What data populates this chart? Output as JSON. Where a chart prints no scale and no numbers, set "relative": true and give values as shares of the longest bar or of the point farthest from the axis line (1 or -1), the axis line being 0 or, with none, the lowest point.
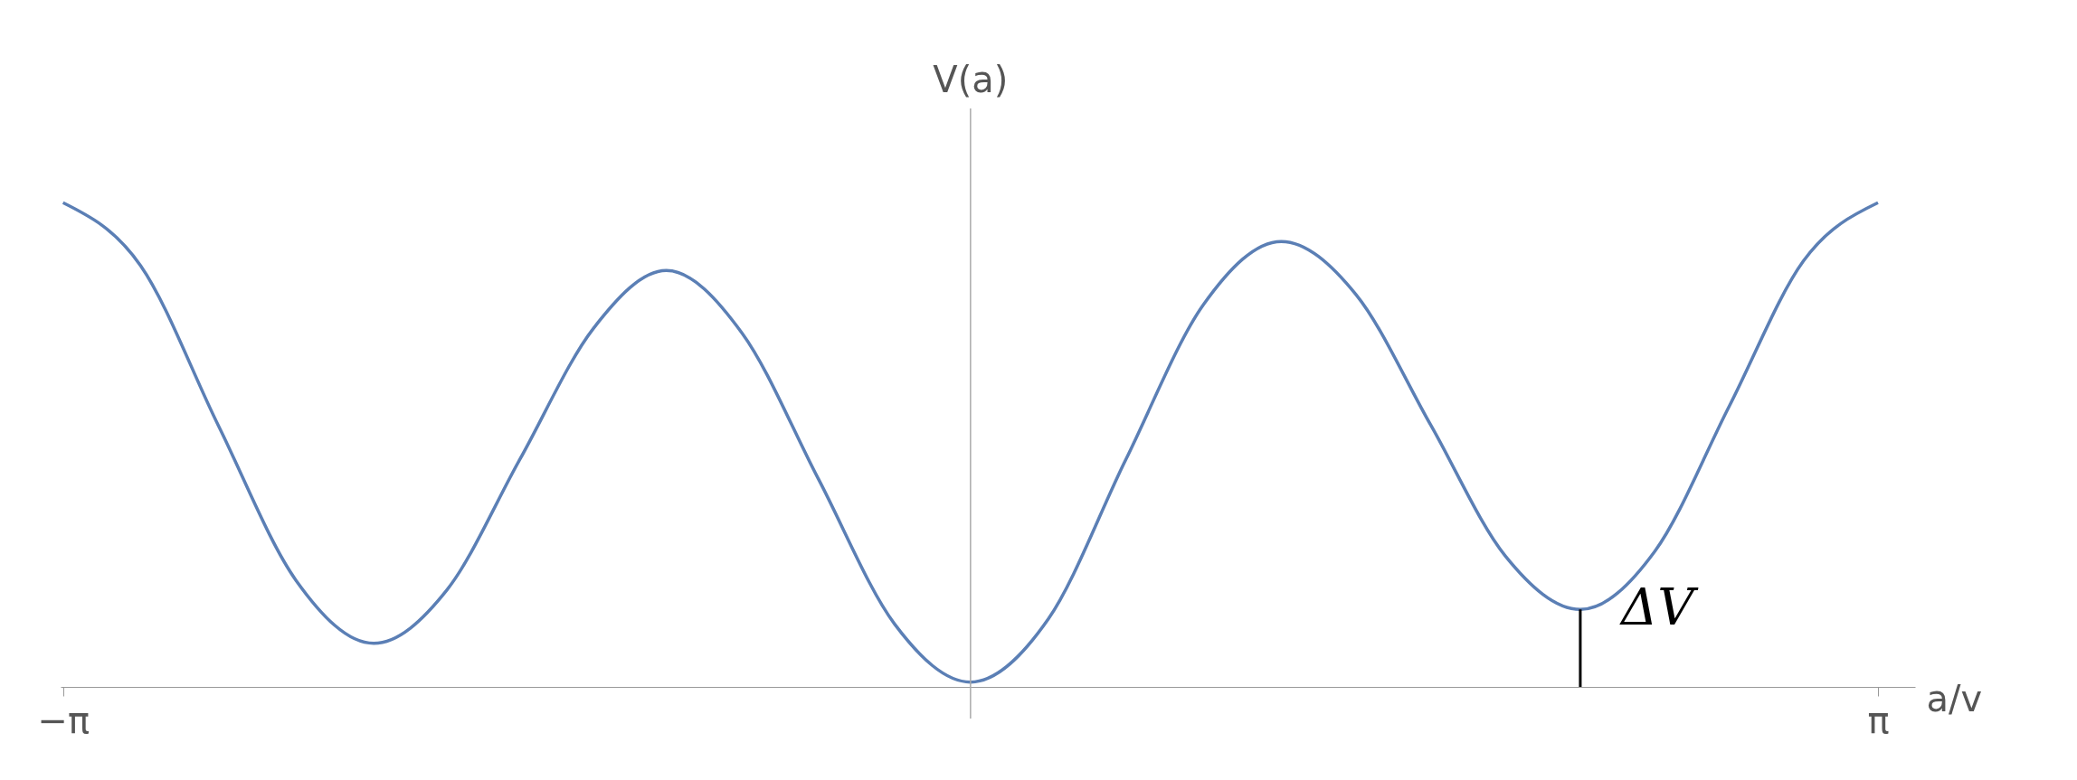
{
  "chart_data": {
    "type": "line",
    "relative": true,
    "xlabel": "a/v",
    "ylabel": "V(a)",
    "x": [
      -3.1416,
      -2.873,
      -2.604,
      -2.335,
      -2.066,
      -1.813,
      -1.56,
      -1.306,
      -1.053,
      -0.79,
      -0.527,
      -0.263,
      0,
      0.269,
      0.538,
      0.807,
      1.076,
      1.335,
      1.594,
      1.852,
      2.111,
      2.369,
      2.627,
      2.884,
      3.1416
    ],
    "series": [
      {
        "color": "#5b7fb5",
        "values": [
          1.0,
          0.87,
          0.54,
          0.22,
          0.09,
          0.2,
          0.47,
          0.74,
          0.86,
          0.73,
          0.43,
          0.13,
          0.01,
          0.14,
          0.47,
          0.79,
          0.92,
          0.81,
          0.54,
          0.27,
          0.16,
          0.28,
          0.58,
          0.88,
          1.0
        ]
      }
    ],
    "xlim": [
      -3.15,
      3.27
    ],
    "xticks": [
      {
        "value": -3.1416,
        "label": "−π"
      },
      {
        "value": 3.1416,
        "label": "π"
      }
    ],
    "tick_labels": "x",
    "grid": false,
    "marker": "none",
    "line_style": "solid",
    "annotations": [
      {
        "text": "ΔV",
        "x": 2.111,
        "y": 0.16
      }
    ]
  }
}
